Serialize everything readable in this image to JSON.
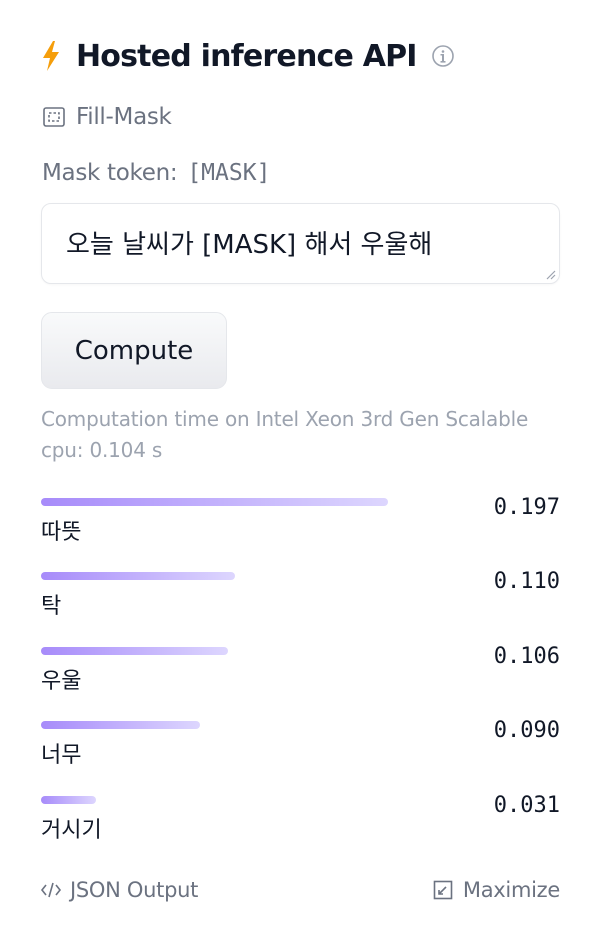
{
  "header": {
    "title": "Hosted inference API",
    "bolt_color": "#f59e0b",
    "icons": [
      "lightning-icon",
      "info-icon"
    ]
  },
  "task": {
    "label": "Fill-Mask",
    "icon": "fill-mask-icon"
  },
  "mask": {
    "label": "Mask token:",
    "token": "[MASK]"
  },
  "input": {
    "value": "오늘 날씨가 [MASK] 해서 우울해"
  },
  "compute_button": {
    "label": "Compute"
  },
  "computation": {
    "text": "Computation time on Intel Xeon 3rd Gen Scalable cpu: 0.104 s"
  },
  "results": [
    {
      "label": "따뜻",
      "score": "0.197",
      "bar_fraction": 0.197
    },
    {
      "label": "탁",
      "score": "0.110",
      "bar_fraction": 0.11
    },
    {
      "label": "우울",
      "score": "0.106",
      "bar_fraction": 0.106
    },
    {
      "label": "너무",
      "score": "0.090",
      "bar_fraction": 0.09
    },
    {
      "label": "거시기",
      "score": "0.031",
      "bar_fraction": 0.031
    }
  ],
  "footer": {
    "json_label": "JSON Output",
    "maximize_label": "Maximize",
    "icons": [
      "code-icon",
      "maximize-icon"
    ]
  },
  "colors": {
    "bar_start": "#a78bfa",
    "bar_end": "#ddd6fe",
    "muted_text": "#6b7280"
  }
}
